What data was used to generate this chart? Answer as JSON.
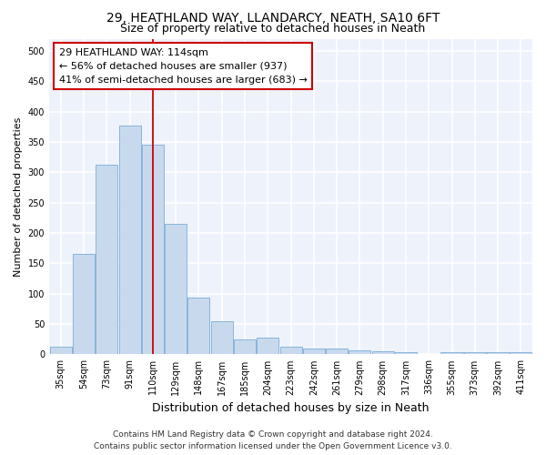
{
  "title": "29, HEATHLAND WAY, LLANDARCY, NEATH, SA10 6FT",
  "subtitle": "Size of property relative to detached houses in Neath",
  "xlabel": "Distribution of detached houses by size in Neath",
  "ylabel": "Number of detached properties",
  "categories": [
    "35sqm",
    "54sqm",
    "73sqm",
    "91sqm",
    "110sqm",
    "129sqm",
    "148sqm",
    "167sqm",
    "185sqm",
    "204sqm",
    "223sqm",
    "242sqm",
    "261sqm",
    "279sqm",
    "298sqm",
    "317sqm",
    "336sqm",
    "355sqm",
    "373sqm",
    "392sqm",
    "411sqm"
  ],
  "values": [
    13,
    165,
    313,
    377,
    345,
    215,
    93,
    55,
    25,
    28,
    13,
    10,
    10,
    7,
    5,
    3,
    0,
    3,
    3,
    3,
    3
  ],
  "bar_color": "#c8d9ee",
  "bar_edge_color": "#7aadd4",
  "vline_color": "#cc0000",
  "vline_x_index": 4.0,
  "annotation_line1": "29 HEATHLAND WAY: 114sqm",
  "annotation_line2": "← 56% of detached houses are smaller (937)",
  "annotation_line3": "41% of semi-detached houses are larger (683) →",
  "ylim": [
    0,
    520
  ],
  "yticks": [
    0,
    50,
    100,
    150,
    200,
    250,
    300,
    350,
    400,
    450,
    500
  ],
  "background_color": "#eef2fb",
  "grid_color": "#ffffff",
  "title_fontsize": 10,
  "subtitle_fontsize": 9,
  "xlabel_fontsize": 9,
  "ylabel_fontsize": 8,
  "tick_fontsize": 7,
  "annotation_fontsize": 8,
  "footer_fontsize": 6.5,
  "footer_line1": "Contains HM Land Registry data © Crown copyright and database right 2024.",
  "footer_line2": "Contains public sector information licensed under the Open Government Licence v3.0."
}
